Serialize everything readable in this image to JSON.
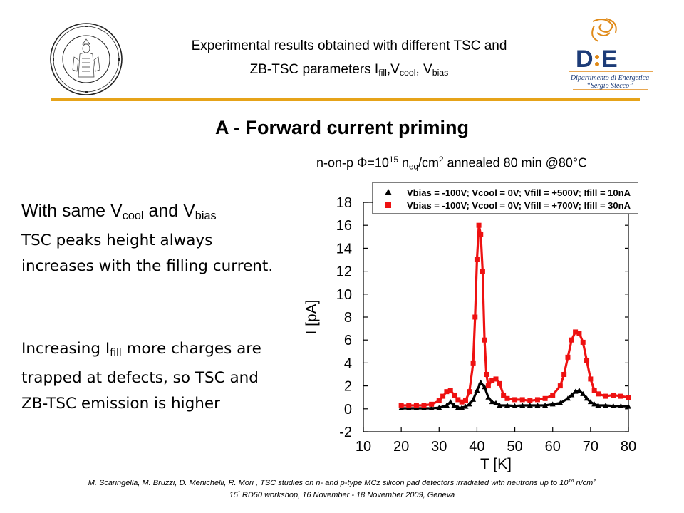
{
  "header": {
    "line1": "Experimental results obtained with different TSC and",
    "line2_prefix": "ZB-TSC parameters  I",
    "fill_sub": "fill",
    "comma1": ",V",
    "cool_sub": "cool",
    "comma2": ", V",
    "bias_sub": "bias"
  },
  "logos": {
    "left_name": "university-of-florence-seal",
    "right_name": "dipartimento-di-energetica-logo",
    "right_lines": [
      "Dipartimento di Energetica",
      "“Sergio Stecco”"
    ]
  },
  "section_title": "A - Forward current priming",
  "sample_note": {
    "prefix": "n-on-p Φ=10",
    "exp": "15",
    "n": " n",
    "eq": "eq",
    "unit": "/cm",
    "exp2": "2",
    "suffix": " annealed 80 min @80°C"
  },
  "lead": {
    "prefix": "With same V",
    "cool": "cool",
    "mid": " and V",
    "bias": "bias"
  },
  "body1": "TSC peaks height always increases with the filling current.",
  "body2": {
    "prefix": "Increasing I",
    "sub": "fill",
    "suffix": " more charges are trapped at defects, so TSC and ZB-TSC emission is higher"
  },
  "footer": {
    "line1_prefix": "M. Scaringella, M. Bruzzi, D. Menichelli, R. Mori , TSC studies on n- and p-type MCz silicon pad detectors irradiated with neutrons up to 10",
    "line1_exp": "16",
    "line1_unit": " n/cm",
    "line1_exp2": "2",
    "line2_prefix": "15",
    "line2_sup": "°",
    "line2_suffix": " RD50 workshop, 16 November - 18 November 2009, Geneva"
  },
  "colors": {
    "accent_rule": "#e6a319",
    "series_black": "#000000",
    "series_red": "#ee1111"
  },
  "chart_data": {
    "type": "scatter",
    "xlabel": "T [K]",
    "ylabel": "I [pA]",
    "xlim": [
      10,
      80
    ],
    "ylim": [
      -2,
      18
    ],
    "xticks": [
      10,
      20,
      30,
      40,
      50,
      60,
      70,
      80
    ],
    "yticks": [
      -2,
      0,
      2,
      4,
      6,
      8,
      10,
      12,
      14,
      16,
      18
    ],
    "legend_position": "top",
    "series": [
      {
        "name": "Vbias = -100V; Vcool = 0V; Vfill = +500V; Ifill = 10nA",
        "marker": "triangle",
        "color": "#000000",
        "points": [
          [
            20,
            0.05
          ],
          [
            22,
            0.05
          ],
          [
            24,
            0.05
          ],
          [
            26,
            0.05
          ],
          [
            28,
            0.05
          ],
          [
            30,
            0.1
          ],
          [
            32,
            0.3
          ],
          [
            33,
            0.6
          ],
          [
            34,
            0.3
          ],
          [
            35,
            0.1
          ],
          [
            36,
            0.1
          ],
          [
            37,
            0.2
          ],
          [
            38,
            0.4
          ],
          [
            39,
            0.8
          ],
          [
            40,
            1.6
          ],
          [
            41,
            2.3
          ],
          [
            42,
            1.9
          ],
          [
            43,
            1.0
          ],
          [
            44,
            0.6
          ],
          [
            45,
            0.5
          ],
          [
            46,
            0.3
          ],
          [
            48,
            0.3
          ],
          [
            50,
            0.25
          ],
          [
            52,
            0.3
          ],
          [
            54,
            0.3
          ],
          [
            56,
            0.3
          ],
          [
            58,
            0.3
          ],
          [
            60,
            0.4
          ],
          [
            62,
            0.5
          ],
          [
            64,
            0.9
          ],
          [
            65,
            1.2
          ],
          [
            66,
            1.5
          ],
          [
            67,
            1.6
          ],
          [
            68,
            1.3
          ],
          [
            69,
            0.9
          ],
          [
            70,
            0.6
          ],
          [
            71,
            0.4
          ],
          [
            72,
            0.3
          ],
          [
            74,
            0.3
          ],
          [
            76,
            0.25
          ],
          [
            78,
            0.25
          ],
          [
            80,
            0.2
          ]
        ]
      },
      {
        "name": "Vbias = -100V; Vcool = 0V; Vfill = +700V; Ifill = 30nA",
        "marker": "square",
        "color": "#ee1111",
        "points": [
          [
            20,
            0.3
          ],
          [
            22,
            0.3
          ],
          [
            24,
            0.3
          ],
          [
            26,
            0.3
          ],
          [
            28,
            0.4
          ],
          [
            30,
            0.7
          ],
          [
            31,
            1.1
          ],
          [
            32,
            1.5
          ],
          [
            33,
            1.6
          ],
          [
            34,
            1.2
          ],
          [
            35,
            0.8
          ],
          [
            36,
            0.6
          ],
          [
            37,
            0.7
          ],
          [
            38,
            1.5
          ],
          [
            39,
            4.0
          ],
          [
            39.5,
            8.0
          ],
          [
            40,
            13.0
          ],
          [
            40.5,
            16.0
          ],
          [
            41,
            15.2
          ],
          [
            41.5,
            12.0
          ],
          [
            42,
            6.0
          ],
          [
            42.5,
            3.0
          ],
          [
            43,
            2.0
          ],
          [
            44,
            2.5
          ],
          [
            45,
            2.6
          ],
          [
            46,
            2.2
          ],
          [
            47,
            1.2
          ],
          [
            48,
            0.9
          ],
          [
            50,
            0.8
          ],
          [
            52,
            0.8
          ],
          [
            54,
            0.7
          ],
          [
            56,
            0.8
          ],
          [
            58,
            0.9
          ],
          [
            60,
            1.2
          ],
          [
            62,
            2.0
          ],
          [
            63,
            3.0
          ],
          [
            64,
            4.5
          ],
          [
            65,
            6.0
          ],
          [
            66,
            6.7
          ],
          [
            67,
            6.6
          ],
          [
            68,
            5.8
          ],
          [
            69,
            4.2
          ],
          [
            70,
            2.6
          ],
          [
            71,
            1.6
          ],
          [
            72,
            1.3
          ],
          [
            74,
            1.1
          ],
          [
            76,
            1.2
          ],
          [
            78,
            1.1
          ],
          [
            80,
            1.0
          ]
        ]
      }
    ]
  }
}
